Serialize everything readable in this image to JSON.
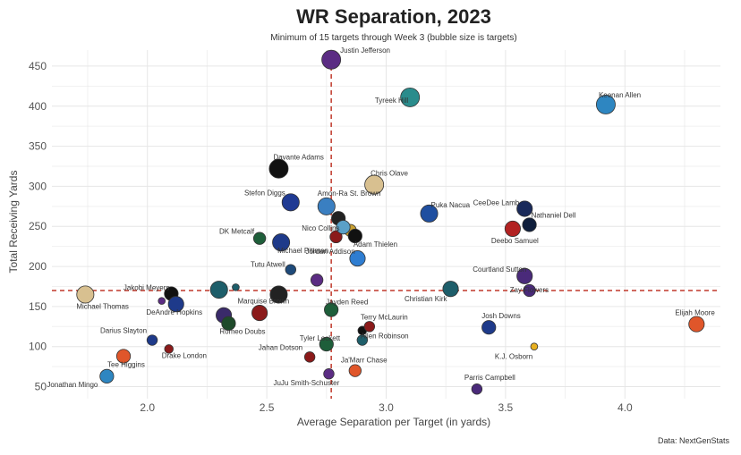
{
  "chart_data": {
    "type": "scatter",
    "title": "WR Separation, 2023",
    "subtitle": "Minimum of 15 targets through Week 3 (bubble size is targets)",
    "xlabel": "Average Separation per Target (in yards)",
    "ylabel": "Total Receiving Yards",
    "source": "Data: NextGenStats",
    "xlim": [
      1.6,
      4.4
    ],
    "ylim": [
      35,
      470
    ],
    "xticks": [
      "2.0",
      "2.5",
      "3.0",
      "3.5",
      "4.0"
    ],
    "yticks": [
      "50",
      "100",
      "150",
      "200",
      "250",
      "300",
      "350",
      "400",
      "450"
    ],
    "grid": true,
    "reference_lines": {
      "x": 2.77,
      "y": 170
    },
    "points": [
      {
        "label": "Justin Jefferson",
        "x": 2.77,
        "y": 458,
        "color": "#5b2c83",
        "size": 9
      },
      {
        "label": "Tyreek Hill",
        "x": 3.1,
        "y": 411,
        "color": "#2a8c8c",
        "size": 9
      },
      {
        "label": "Keenan Allen",
        "x": 3.92,
        "y": 402,
        "color": "#2e86c1",
        "size": 9
      },
      {
        "label": "Davante Adams",
        "x": 2.55,
        "y": 322,
        "color": "#111111",
        "size": 9
      },
      {
        "label": "Chris Olave",
        "x": 2.95,
        "y": 302,
        "color": "#d8c090",
        "size": 9
      },
      {
        "label": "Stefon Diggs",
        "x": 2.6,
        "y": 280,
        "color": "#1f3a93",
        "size": 8
      },
      {
        "label": "Amon-Ra St. Brown",
        "x": 2.75,
        "y": 275,
        "color": "#3a7fc1",
        "size": 8
      },
      {
        "label": "CeeDee Lamb",
        "x": 3.58,
        "y": 272,
        "color": "#1a2a5a",
        "size": 7
      },
      {
        "label": "Puka Nacua",
        "x": 3.18,
        "y": 266,
        "color": "#1f4fa0",
        "size": 8
      },
      {
        "label": "Nathaniel Dell",
        "x": 3.6,
        "y": 252,
        "color": "#0f1e3c",
        "size": 6
      },
      {
        "label": "Deebo Samuel",
        "x": 3.53,
        "y": 247,
        "color": "#b22222",
        "size": 7
      },
      {
        "label": "Nico Collins",
        "x": 2.82,
        "y": 249,
        "color": "#5aa0c8",
        "size": 6
      },
      {
        "label": "DK Metcalf",
        "x": 2.47,
        "y": 235,
        "color": "#1e5e3a",
        "size": 5
      },
      {
        "label": "Michael Pittman",
        "x": 2.56,
        "y": 230,
        "color": "#1e3a8a",
        "size": 8
      },
      {
        "label": "Adam Thielen",
        "x": 2.87,
        "y": 238,
        "color": "#111111",
        "size": 6
      },
      {
        "label": "Tutu Atwell",
        "x": 2.6,
        "y": 196,
        "color": "#1e4a7a",
        "size": 4
      },
      {
        "label": "Jordan Addison",
        "x": 2.88,
        "y": 210,
        "color": "#2e7dd1",
        "size": 7
      },
      {
        "label": "Courtland Sutton",
        "x": 3.58,
        "y": 188,
        "color": "#4a2a7a",
        "size": 7
      },
      {
        "label": "Jakobi Meyers",
        "x": 2.1,
        "y": 166,
        "color": "#111111",
        "size": 6
      },
      {
        "label": "Zay Flowers",
        "x": 3.6,
        "y": 170,
        "color": "#4a2a7a",
        "size": 5
      },
      {
        "label": "Michael Thomas",
        "x": 1.74,
        "y": 165,
        "color": "#d8c090",
        "size": 8
      },
      {
        "label": "Christian Kirk",
        "x": 3.27,
        "y": 172,
        "color": "#1e5e6a",
        "size": 7
      },
      {
        "label": "Marquise Brown",
        "x": 2.55,
        "y": 165,
        "color": "#222222",
        "size": 8
      },
      {
        "label": "Jayden Reed",
        "x": 2.77,
        "y": 146,
        "color": "#1e5e3a",
        "size": 6
      },
      {
        "label": "DeAndre Hopkins",
        "x": 2.12,
        "y": 153,
        "color": "#1e3a8a",
        "size": 7
      },
      {
        "label": "Terry McLaurin",
        "x": 2.93,
        "y": 125,
        "color": "#8b1a1a",
        "size": 4
      },
      {
        "label": "Elijah Moore",
        "x": 4.3,
        "y": 128,
        "color": "#e0562a",
        "size": 7
      },
      {
        "label": "Josh Downs",
        "x": 3.43,
        "y": 124,
        "color": "#1e3a8a",
        "size": 6
      },
      {
        "label": "Romeo Doubs",
        "x": 2.34,
        "y": 129,
        "color": "#1e4a2a",
        "size": 6
      },
      {
        "label": "Darius Slayton",
        "x": 2.02,
        "y": 108,
        "color": "#1e3a8a",
        "size": 4
      },
      {
        "label": "Allen Robinson",
        "x": 2.9,
        "y": 108,
        "color": "#1e5e6a",
        "size": 4
      },
      {
        "label": "Tyler Lockett",
        "x": 2.75,
        "y": 103,
        "color": "#1e5e3a",
        "size": 6
      },
      {
        "label": "Jahan Dotson",
        "x": 2.68,
        "y": 87,
        "color": "#8b1a1a",
        "size": 4
      },
      {
        "label": "K.J. Osborn",
        "x": 3.62,
        "y": 100,
        "color": "#e8b020",
        "size": 2
      },
      {
        "label": "Drake London",
        "x": 2.09,
        "y": 97,
        "color": "#8b1a1a",
        "size": 3
      },
      {
        "label": "Tee Higgins",
        "x": 1.9,
        "y": 88,
        "color": "#e0562a",
        "size": 6
      },
      {
        "label": "Ja'Marr Chase",
        "x": 2.87,
        "y": 70,
        "color": "#e0562a",
        "size": 5
      },
      {
        "label": "JuJu Smith-Schuster",
        "x": 2.76,
        "y": 66,
        "color": "#5b2c83",
        "size": 4
      },
      {
        "label": "Jonathan Mingo",
        "x": 1.83,
        "y": 63,
        "color": "#2e86c1",
        "size": 6
      },
      {
        "label": "Parris Campbell",
        "x": 3.38,
        "y": 47,
        "color": "#4a2a7a",
        "size": 4
      }
    ],
    "extra_bubbles": [
      {
        "x": 2.8,
        "y": 260,
        "color": "#222222",
        "size": 6
      },
      {
        "x": 2.79,
        "y": 237,
        "color": "#8b1a1a",
        "size": 5
      },
      {
        "x": 2.85,
        "y": 245,
        "color": "#c8a032",
        "size": 5
      },
      {
        "x": 2.3,
        "y": 171,
        "color": "#1e5e6a",
        "size": 8
      },
      {
        "x": 2.32,
        "y": 139,
        "color": "#3a2a6a",
        "size": 7
      },
      {
        "x": 2.47,
        "y": 142,
        "color": "#8b1a1a",
        "size": 7
      },
      {
        "x": 2.71,
        "y": 183,
        "color": "#5b2c83",
        "size": 5
      },
      {
        "x": 2.9,
        "y": 120,
        "color": "#111111",
        "size": 3
      },
      {
        "x": 2.06,
        "y": 157,
        "color": "#5b2c83",
        "size": 2
      },
      {
        "x": 2.37,
        "y": 174,
        "color": "#1e5e6a",
        "size": 2
      }
    ],
    "legend": "none"
  }
}
